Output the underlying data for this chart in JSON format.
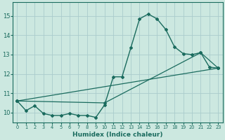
{
  "xlabel": "Humidex (Indice chaleur)",
  "bg_color": "#cce8e0",
  "grid_color": "#aacccc",
  "line_color": "#1a6b5e",
  "xlim": [
    -0.5,
    23.5
  ],
  "ylim": [
    9.5,
    15.7
  ],
  "xticks": [
    0,
    1,
    2,
    3,
    4,
    5,
    6,
    7,
    8,
    9,
    10,
    11,
    12,
    13,
    14,
    15,
    16,
    17,
    18,
    19,
    20,
    21,
    22,
    23
  ],
  "yticks": [
    10,
    11,
    12,
    13,
    14,
    15
  ],
  "line1_x": [
    0,
    1,
    2,
    3,
    4,
    5,
    6,
    7,
    8,
    9,
    10,
    11,
    12,
    13,
    14,
    15,
    16,
    17,
    18,
    19,
    20,
    21,
    22,
    23
  ],
  "line1_y": [
    10.6,
    10.1,
    10.35,
    9.95,
    9.85,
    9.85,
    9.95,
    9.85,
    9.85,
    9.75,
    10.4,
    11.85,
    11.85,
    13.35,
    14.85,
    15.1,
    14.85,
    14.3,
    13.4,
    13.05,
    13.0,
    13.1,
    12.35,
    12.3
  ],
  "line2_x": [
    0,
    23
  ],
  "line2_y": [
    10.6,
    12.3
  ],
  "line3_x": [
    0,
    10,
    21,
    23
  ],
  "line3_y": [
    10.6,
    10.5,
    13.1,
    12.3
  ]
}
